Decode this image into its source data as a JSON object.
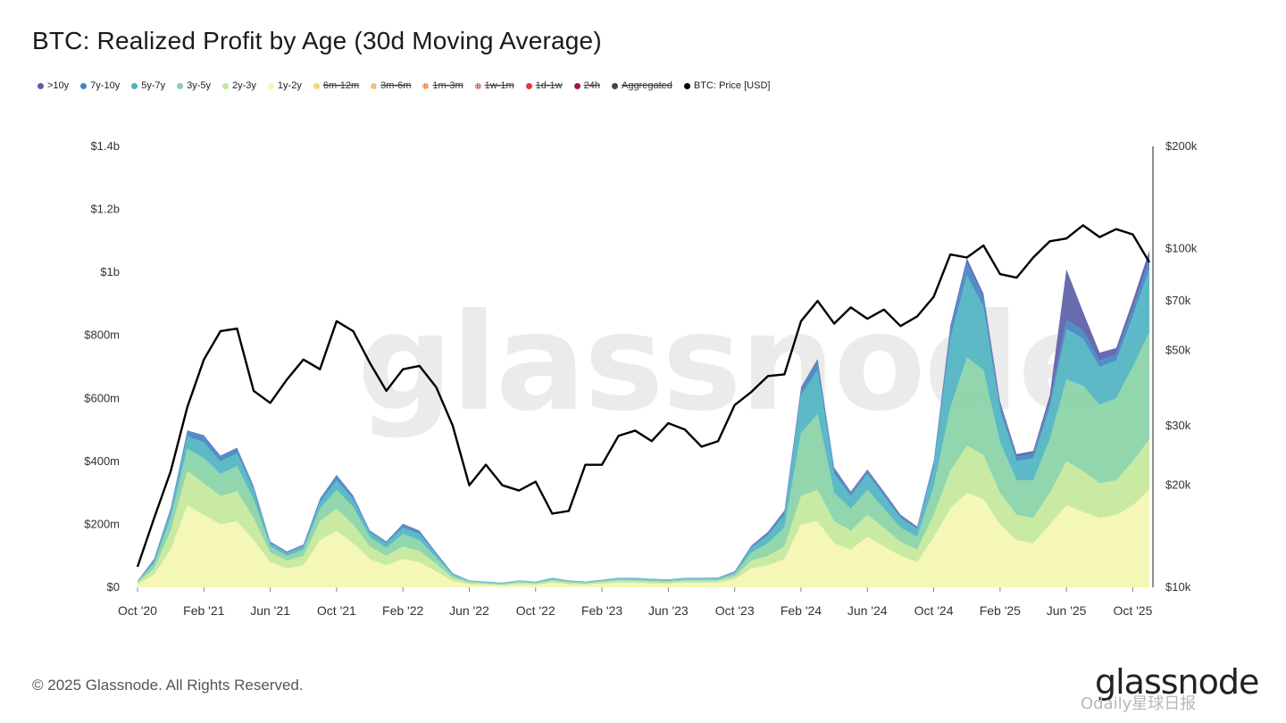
{
  "title": "BTC: Realized Profit by Age (30d Moving Average)",
  "legend": [
    {
      "label": ">10y",
      "color": "#5b5ea6",
      "active": true,
      "dot": "solid"
    },
    {
      "label": "7y-10y",
      "color": "#3f86c5",
      "active": true,
      "dot": "solid"
    },
    {
      "label": "5y-7y",
      "color": "#4fb3c0",
      "active": true,
      "dot": "solid"
    },
    {
      "label": "3y-5y",
      "color": "#88d3a6",
      "active": true,
      "dot": "solid"
    },
    {
      "label": "2y-3y",
      "color": "#c3e89a",
      "active": true,
      "dot": "solid"
    },
    {
      "label": "1y-2y",
      "color": "#f3f6b0",
      "active": true,
      "dot": "solid"
    },
    {
      "label": "6m-12m",
      "color": "#f5d77a",
      "active": false,
      "dot": "solid"
    },
    {
      "label": "3m-6m",
      "color": "#f4a24a",
      "active": false,
      "dot": "pattern"
    },
    {
      "label": "1m-3m",
      "color": "#ee7a3a",
      "active": false,
      "dot": "pattern"
    },
    {
      "label": "1w-1m",
      "color": "#e4503a",
      "active": false,
      "dot": "pattern"
    },
    {
      "label": "1d-1w",
      "color": "#d83a3a",
      "active": false,
      "dot": "solid"
    },
    {
      "label": "24h",
      "color": "#a4163a",
      "active": false,
      "dot": "solid"
    },
    {
      "label": "Aggregated",
      "color": "#444444",
      "active": false,
      "dot": "solid"
    },
    {
      "label": "BTC: Price [USD]",
      "color": "#000000",
      "active": true,
      "dot": "solid"
    }
  ],
  "watermark": "glassnode",
  "copyright": "© 2025 Glassnode. All Rights Reserved.",
  "brand": "glassnode",
  "overlay_watermark": "Odaily星球日报",
  "chart_data": {
    "type": "area",
    "stacked": true,
    "x_start": "2020-10",
    "x_step": "month",
    "x": [
      "Oct '20",
      "Nov '20",
      "Dec '20",
      "Jan '21",
      "Feb '21",
      "Mar '21",
      "Apr '21",
      "May '21",
      "Jun '21",
      "Jul '21",
      "Aug '21",
      "Sep '21",
      "Oct '21",
      "Nov '21",
      "Dec '21",
      "Jan '22",
      "Feb '22",
      "Mar '22",
      "Apr '22",
      "May '22",
      "Jun '22",
      "Jul '22",
      "Aug '22",
      "Sep '22",
      "Oct '22",
      "Nov '22",
      "Dec '22",
      "Jan '23",
      "Feb '23",
      "Mar '23",
      "Apr '23",
      "May '23",
      "Jun '23",
      "Jul '23",
      "Aug '23",
      "Sep '23",
      "Oct '23",
      "Nov '23",
      "Dec '23",
      "Jan '24",
      "Feb '24",
      "Mar '24",
      "Apr '24",
      "May '24",
      "Jun '24",
      "Jul '24",
      "Aug '24",
      "Sep '24",
      "Oct '24",
      "Nov '24",
      "Dec '24",
      "Jan '25",
      "Feb '25",
      "Mar '25",
      "Apr '25",
      "May '25",
      "Jun '25",
      "Jul '25",
      "Aug '25",
      "Sep '25",
      "Oct '25",
      "Nov '25"
    ],
    "x_tick_labels": [
      "Oct '20",
      "Feb '21",
      "Jun '21",
      "Oct '21",
      "Feb '22",
      "Jun '22",
      "Oct '22",
      "Feb '23",
      "Jun '23",
      "Oct '23",
      "Feb '24",
      "Jun '24",
      "Oct '24",
      "Feb '25",
      "Jun '25",
      "Oct '25"
    ],
    "y_left": {
      "ticks": [
        "$0",
        "$200m",
        "$400m",
        "$600m",
        "$800m",
        "$1b",
        "$1.2b",
        "$1.4b"
      ],
      "range": [
        0,
        1400
      ],
      "unit": "millions USD"
    },
    "y_right": {
      "ticks": [
        "$10k",
        "$20k",
        "$30k",
        "$50k",
        "$70k",
        "$100k",
        "$200k"
      ],
      "tick_values": [
        10000,
        20000,
        30000,
        50000,
        70000,
        100000,
        200000
      ],
      "range": [
        10000,
        200000
      ],
      "scale": "log"
    },
    "series": [
      {
        "name": "1y-2y",
        "color": "#f3f6b0",
        "values": [
          10,
          40,
          120,
          260,
          230,
          200,
          210,
          150,
          80,
          60,
          70,
          150,
          180,
          140,
          90,
          70,
          90,
          80,
          50,
          20,
          10,
          8,
          6,
          10,
          8,
          15,
          10,
          8,
          12,
          15,
          15,
          12,
          12,
          15,
          15,
          15,
          25,
          60,
          70,
          90,
          200,
          210,
          140,
          120,
          160,
          130,
          100,
          80,
          160,
          250,
          300,
          280,
          200,
          150,
          140,
          200,
          260,
          240,
          220,
          230,
          260,
          310
        ]
      },
      {
        "name": "2y-3y",
        "color": "#c3e89a",
        "values": [
          5,
          20,
          60,
          110,
          100,
          90,
          95,
          70,
          30,
          25,
          30,
          60,
          70,
          60,
          40,
          30,
          40,
          35,
          25,
          10,
          5,
          4,
          3,
          5,
          4,
          6,
          5,
          4,
          5,
          6,
          6,
          6,
          5,
          6,
          6,
          6,
          10,
          25,
          30,
          40,
          90,
          100,
          70,
          60,
          70,
          60,
          45,
          40,
          70,
          120,
          150,
          140,
          100,
          80,
          80,
          100,
          140,
          130,
          110,
          110,
          140,
          160
        ]
      },
      {
        "name": "3y-5y",
        "color": "#88d3a6",
        "values": [
          3,
          15,
          40,
          70,
          80,
          70,
          80,
          60,
          20,
          15,
          20,
          40,
          60,
          55,
          30,
          25,
          40,
          35,
          20,
          8,
          4,
          3,
          3,
          4,
          3,
          5,
          4,
          3,
          4,
          5,
          5,
          5,
          4,
          5,
          5,
          6,
          8,
          25,
          40,
          60,
          200,
          240,
          90,
          70,
          80,
          60,
          45,
          40,
          90,
          200,
          280,
          270,
          160,
          110,
          120,
          170,
          260,
          270,
          250,
          260,
          300,
          340
        ]
      },
      {
        "name": "5y-7y",
        "color": "#4fb3c0",
        "values": [
          2,
          10,
          20,
          40,
          50,
          40,
          40,
          30,
          10,
          10,
          10,
          20,
          30,
          25,
          15,
          15,
          20,
          20,
          10,
          5,
          2,
          2,
          2,
          2,
          2,
          3,
          2,
          2,
          2,
          3,
          3,
          3,
          3,
          3,
          3,
          3,
          5,
          15,
          25,
          40,
          120,
          140,
          60,
          40,
          50,
          40,
          30,
          25,
          60,
          220,
          260,
          200,
          100,
          60,
          70,
          100,
          160,
          150,
          120,
          120,
          160,
          200
        ]
      },
      {
        "name": "7y-10y",
        "color": "#3f86c5",
        "values": [
          1,
          5,
          10,
          15,
          20,
          15,
          15,
          10,
          5,
          3,
          5,
          10,
          15,
          10,
          5,
          5,
          10,
          8,
          5,
          2,
          1,
          1,
          1,
          1,
          1,
          1,
          1,
          1,
          1,
          1,
          1,
          1,
          1,
          1,
          1,
          1,
          2,
          5,
          8,
          10,
          20,
          30,
          15,
          10,
          10,
          10,
          8,
          5,
          15,
          30,
          40,
          30,
          20,
          15,
          15,
          20,
          30,
          25,
          20,
          20,
          25,
          30
        ]
      },
      {
        "name": ">10y",
        "color": "#5b5ea6",
        "values": [
          0,
          1,
          2,
          3,
          3,
          3,
          3,
          2,
          1,
          1,
          1,
          2,
          2,
          2,
          1,
          1,
          2,
          2,
          1,
          0,
          0,
          0,
          0,
          0,
          0,
          0,
          0,
          0,
          0,
          0,
          0,
          0,
          0,
          0,
          0,
          0,
          1,
          2,
          3,
          4,
          5,
          5,
          5,
          4,
          4,
          4,
          3,
          3,
          5,
          10,
          15,
          12,
          10,
          8,
          8,
          20,
          160,
          60,
          25,
          20,
          25,
          30
        ]
      },
      {
        "name": "BTC: Price [USD]",
        "color": "#000000",
        "axis": "right",
        "values": [
          11500,
          16000,
          22000,
          34000,
          47000,
          57000,
          58000,
          38000,
          35000,
          41000,
          47000,
          44000,
          61000,
          57000,
          46000,
          38000,
          44000,
          45000,
          39000,
          30000,
          20000,
          23000,
          20000,
          19300,
          20500,
          16500,
          16800,
          23000,
          23000,
          28000,
          29000,
          27000,
          30500,
          29200,
          26000,
          27000,
          34500,
          37700,
          42000,
          42500,
          61000,
          70000,
          60000,
          67000,
          62000,
          66000,
          59000,
          63000,
          72000,
          96000,
          94000,
          102000,
          84000,
          82000,
          94000,
          105000,
          107000,
          117000,
          108000,
          114000,
          110000,
          91000
        ]
      }
    ]
  }
}
